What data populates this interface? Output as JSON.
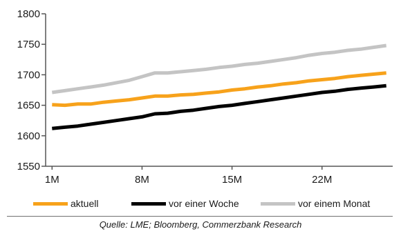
{
  "chart_data": {
    "type": "line",
    "x": [
      1,
      2,
      3,
      4,
      5,
      6,
      7,
      8,
      9,
      10,
      11,
      12,
      13,
      14,
      15,
      16,
      17,
      18,
      19,
      20,
      21,
      22,
      23,
      24,
      25,
      26,
      27
    ],
    "xticks": [
      1,
      8,
      15,
      22
    ],
    "xtick_labels": [
      "1M",
      "8M",
      "15M",
      "22M"
    ],
    "xlim": [
      0.5,
      27.5
    ],
    "yticks": [
      1550,
      1600,
      1650,
      1700,
      1750,
      1800
    ],
    "ylim": [
      1550,
      1800
    ],
    "grid": false,
    "legend_position": "bottom",
    "series": [
      {
        "name": "aktuell",
        "color": "#f7a21b",
        "values": [
          1651,
          1650,
          1652,
          1652,
          1655,
          1657,
          1659,
          1662,
          1665,
          1665,
          1667,
          1668,
          1670,
          1672,
          1675,
          1677,
          1680,
          1682,
          1685,
          1687,
          1690,
          1692,
          1694,
          1697,
          1699,
          1701,
          1703
        ]
      },
      {
        "name": "vor einer Woche",
        "color": "#000000",
        "values": [
          1612,
          1614,
          1616,
          1619,
          1622,
          1625,
          1628,
          1631,
          1636,
          1637,
          1640,
          1642,
          1645,
          1648,
          1650,
          1653,
          1656,
          1659,
          1662,
          1665,
          1668,
          1671,
          1673,
          1676,
          1678,
          1680,
          1682
        ]
      },
      {
        "name": "vor einem Monat",
        "color": "#c4c4c4",
        "values": [
          1671,
          1674,
          1677,
          1680,
          1683,
          1687,
          1691,
          1697,
          1703,
          1703,
          1705,
          1707,
          1709,
          1712,
          1714,
          1717,
          1719,
          1722,
          1725,
          1728,
          1732,
          1735,
          1737,
          1740,
          1742,
          1745,
          1748
        ]
      }
    ]
  },
  "source_note": "Quelle: LME; Bloomberg, Commerzbank Research"
}
